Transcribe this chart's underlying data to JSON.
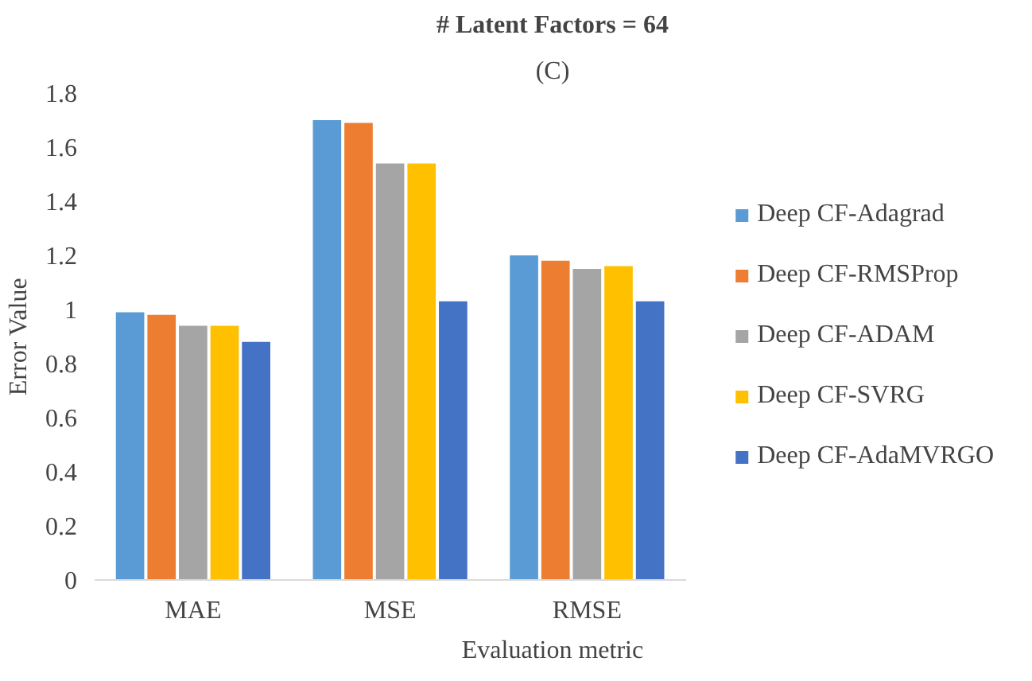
{
  "chart_data": {
    "type": "bar",
    "title": "# Latent Factors = 64",
    "xlabel": "Evaluation metric",
    "ylabel": "Error Value",
    "annotations": [
      "(C)"
    ],
    "categories": [
      "MAE",
      "MSE",
      "RMSE"
    ],
    "series": [
      {
        "name": "Deep CF-Adagrad",
        "color": "#5b9bd5",
        "values": [
          0.99,
          1.7,
          1.2
        ]
      },
      {
        "name": "Deep CF-RMSProp",
        "color": "#ed7d31",
        "values": [
          0.98,
          1.69,
          1.18
        ]
      },
      {
        "name": "Deep CF-ADAM",
        "color": "#a5a5a5",
        "values": [
          0.94,
          1.54,
          1.15
        ]
      },
      {
        "name": "Deep CF-SVRG",
        "color": "#ffc000",
        "values": [
          0.94,
          1.54,
          1.16
        ]
      },
      {
        "name": "Deep CF-AdaMVRGO",
        "color": "#4472c4",
        "values": [
          0.88,
          1.03,
          1.03
        ]
      }
    ],
    "ylim": [
      0,
      1.8
    ],
    "yticks": [
      0,
      0.2,
      0.4,
      0.6,
      0.8,
      1,
      1.2,
      1.4,
      1.6,
      1.8
    ],
    "grid": false,
    "legend": "right"
  }
}
